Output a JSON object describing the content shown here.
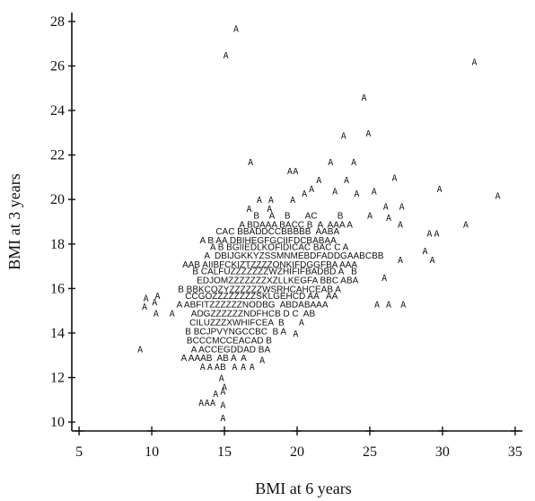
{
  "chart_data": {
    "type": "scatter",
    "title": "",
    "xlabel": "BMI at 6 years",
    "ylabel": "BMI at 3 years",
    "xlim": [
      4.5,
      35.5
    ],
    "ylim": [
      9.6,
      28.4
    ],
    "x_ticks": [
      5,
      10,
      15,
      20,
      25,
      30,
      35
    ],
    "y_ticks": [
      10,
      12,
      14,
      16,
      18,
      20,
      22,
      24,
      26,
      28
    ],
    "x_tick_labels": [
      "5",
      "10",
      "15",
      "20",
      "25",
      "30",
      "35"
    ],
    "y_tick_labels": [
      "10",
      "12",
      "14",
      "16",
      "18",
      "20",
      "22",
      "24",
      "26",
      "28"
    ],
    "marker_glyph": "A",
    "grid": false,
    "legend": "none",
    "points": [
      {
        "x": 15.8,
        "y": 27.7
      },
      {
        "x": 15.1,
        "y": 26.5
      },
      {
        "x": 32.2,
        "y": 26.2
      },
      {
        "x": 24.6,
        "y": 24.6
      },
      {
        "x": 24.9,
        "y": 23.0
      },
      {
        "x": 23.2,
        "y": 22.9
      },
      {
        "x": 16.8,
        "y": 21.7
      },
      {
        "x": 22.3,
        "y": 21.7
      },
      {
        "x": 23.9,
        "y": 21.7
      },
      {
        "x": 19.5,
        "y": 21.3
      },
      {
        "x": 19.9,
        "y": 21.3
      },
      {
        "x": 26.7,
        "y": 21.0
      },
      {
        "x": 21.5,
        "y": 20.9
      },
      {
        "x": 23.4,
        "y": 20.9
      },
      {
        "x": 29.8,
        "y": 20.5
      },
      {
        "x": 33.8,
        "y": 20.2
      },
      {
        "x": 21.0,
        "y": 20.5
      },
      {
        "x": 17.4,
        "y": 20.0
      },
      {
        "x": 18.2,
        "y": 20.0
      },
      {
        "x": 19.7,
        "y": 20.0
      },
      {
        "x": 20.5,
        "y": 20.3
      },
      {
        "x": 22.6,
        "y": 20.4
      },
      {
        "x": 24.1,
        "y": 20.3
      },
      {
        "x": 25.3,
        "y": 20.4
      },
      {
        "x": 27.2,
        "y": 19.7
      },
      {
        "x": 26.1,
        "y": 19.7
      },
      {
        "x": 16.7,
        "y": 19.6
      },
      {
        "x": 18.1,
        "y": 19.6
      },
      {
        "x": 31.6,
        "y": 18.9
      },
      {
        "x": 29.1,
        "y": 18.5
      },
      {
        "x": 29.6,
        "y": 18.5
      },
      {
        "x": 27.1,
        "y": 18.9
      },
      {
        "x": 26.3,
        "y": 19.2
      },
      {
        "x": 25.0,
        "y": 19.3
      },
      {
        "x": 28.8,
        "y": 17.7
      },
      {
        "x": 29.3,
        "y": 17.3
      },
      {
        "x": 27.1,
        "y": 17.3
      },
      {
        "x": 26.0,
        "y": 16.5
      },
      {
        "x": 25.5,
        "y": 15.3
      },
      {
        "x": 26.3,
        "y": 15.3
      },
      {
        "x": 27.3,
        "y": 15.3
      },
      {
        "x": 9.6,
        "y": 15.6
      },
      {
        "x": 10.4,
        "y": 15.7
      },
      {
        "x": 10.2,
        "y": 15.4
      },
      {
        "x": 9.5,
        "y": 15.2
      },
      {
        "x": 10.3,
        "y": 14.9
      },
      {
        "x": 9.2,
        "y": 13.3
      },
      {
        "x": 11.4,
        "y": 14.9
      },
      {
        "x": 20.3,
        "y": 14.5
      },
      {
        "x": 19.9,
        "y": 14.0
      },
      {
        "x": 13.5,
        "y": 12.5
      },
      {
        "x": 14.0,
        "y": 12.5
      },
      {
        "x": 14.5,
        "y": 12.5
      },
      {
        "x": 16.9,
        "y": 12.5
      },
      {
        "x": 14.8,
        "y": 12.0
      },
      {
        "x": 15.0,
        "y": 11.6
      },
      {
        "x": 14.4,
        "y": 11.3
      },
      {
        "x": 14.9,
        "y": 11.4
      },
      {
        "x": 13.4,
        "y": 10.9
      },
      {
        "x": 13.8,
        "y": 10.9
      },
      {
        "x": 14.2,
        "y": 10.9
      },
      {
        "x": 14.9,
        "y": 10.8
      },
      {
        "x": 14.9,
        "y": 10.2
      },
      {
        "x": 15.7,
        "y": 12.5
      },
      {
        "x": 17.6,
        "y": 12.8
      },
      {
        "x": 16.3,
        "y": 12.5
      }
    ],
    "text_rows": [
      {
        "x": 17.0,
        "y": 19.3,
        "text": "B    A    B      AC        B"
      },
      {
        "x": 16.0,
        "y": 18.9,
        "text": "A BDAAA BACC B  A  AAA A"
      },
      {
        "x": 14.4,
        "y": 18.6,
        "text": "CAC BBADDCCBBBBB  AABA"
      },
      {
        "x": 13.3,
        "y": 18.2,
        "text": "A B AA DBIHEGFGCIIFDCBABAA"
      },
      {
        "x": 14.0,
        "y": 17.9,
        "text": "A B BGIIEDLKOFIDICAC BAC C A"
      },
      {
        "x": 13.6,
        "y": 17.5,
        "text": "A  DBIJGKKYZSSMNMEBDFADDGAABCBB"
      },
      {
        "x": 12.1,
        "y": 17.1,
        "text": "AAB AIIBFCKIZTZZZZONKIFDGGFBA AAA"
      },
      {
        "x": 12.8,
        "y": 16.8,
        "text": "B CALFUZZZZZZZWZHIFIFBADBD A   B"
      },
      {
        "x": 13.1,
        "y": 16.4,
        "text": "EDJOMZZZZZZZXZLLKEGFA BBC ABA"
      },
      {
        "x": 11.8,
        "y": 16.0,
        "text": "B BBKCOZYZZZZZZWSRHCAHCEAB A"
      },
      {
        "x": 12.3,
        "y": 15.7,
        "text": "CCGOZZZZZZZZSKLGEHCD AA   AA"
      },
      {
        "x": 11.7,
        "y": 15.3,
        "text": "A ABFITZZZZZZNODBG  ABDABAAA"
      },
      {
        "x": 12.7,
        "y": 14.9,
        "text": "ADGZZZZZZNDFHCB D C  AB"
      },
      {
        "x": 12.6,
        "y": 14.5,
        "text": "CILUZZZXWHIFCEA  B"
      },
      {
        "x": 12.3,
        "y": 14.1,
        "text": "B BCJPVYNGCCBC  B A"
      },
      {
        "x": 12.4,
        "y": 13.7,
        "text": "BCCCMCCEACAD B"
      },
      {
        "x": 12.7,
        "y": 13.3,
        "text": "A ACCEGDDAD BA"
      },
      {
        "x": 12.0,
        "y": 12.9,
        "text": "A AAAB  AB A  A"
      },
      {
        "x": 14.7,
        "y": 12.5,
        "text": "B"
      }
    ]
  }
}
